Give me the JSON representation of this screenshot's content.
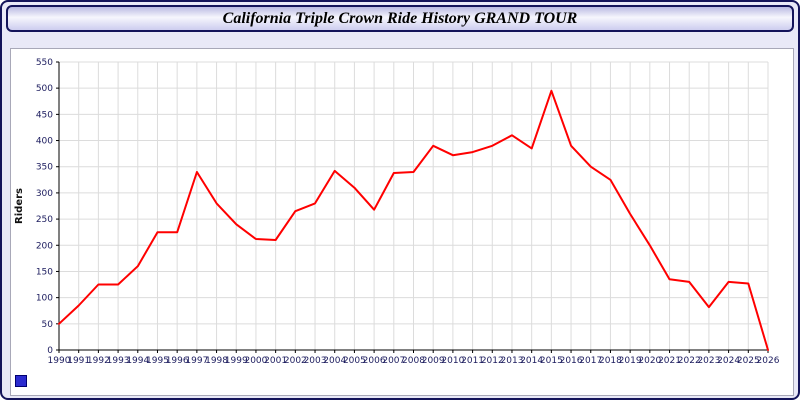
{
  "window": {
    "title": "California Triple Crown Ride History GRAND TOUR"
  },
  "chart_data": {
    "type": "line",
    "title": "California Triple Crown Ride History GRAND TOUR",
    "xlabel": "",
    "ylabel": "Riders",
    "ylim": [
      0,
      550
    ],
    "ytick_step": 50,
    "grid": true,
    "legend": "none",
    "line_color": "#ff0000",
    "x": [
      1990,
      1991,
      1992,
      1993,
      1994,
      1995,
      1996,
      1997,
      1998,
      1999,
      2000,
      2001,
      2002,
      2003,
      2004,
      2005,
      2006,
      2007,
      2008,
      2009,
      2010,
      2011,
      2012,
      2013,
      2014,
      2015,
      2016,
      2017,
      2018,
      2019,
      2020,
      2021,
      2022,
      2023,
      2024,
      2025,
      2026
    ],
    "series": [
      {
        "name": "Riders",
        "values": [
          50,
          85,
          125,
          125,
          160,
          225,
          225,
          340,
          280,
          240,
          212,
          210,
          265,
          280,
          342,
          310,
          268,
          338,
          340,
          390,
          372,
          378,
          390,
          410,
          385,
          495,
          390,
          350,
          325,
          260,
          200,
          135,
          130,
          82,
          130,
          127,
          0
        ]
      }
    ]
  },
  "colors": {
    "window_background": "#e9e9f7",
    "window_border": "#14145a",
    "plot_background": "#ffffff",
    "grid_line": "#dcdcdc",
    "axis_line": "#000000",
    "tick_label": "#1c1c5e",
    "data_line": "#ff0000",
    "corner_square": "#2b2bcf"
  }
}
